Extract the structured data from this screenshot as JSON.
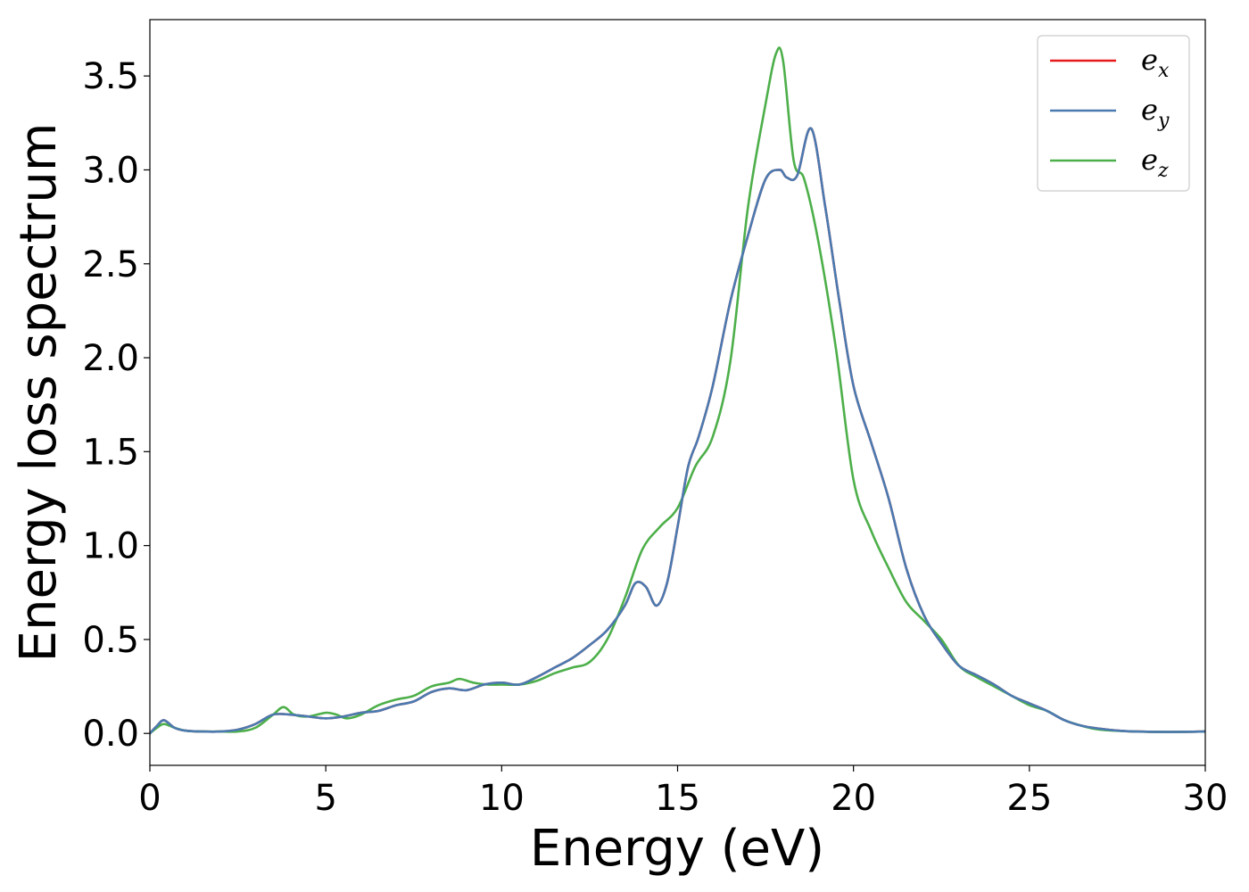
{
  "chart_data": {
    "type": "line",
    "xlabel": "Energy (eV)",
    "ylabel": "Energy loss spectrum",
    "xlim": [
      0,
      30
    ],
    "ylim": [
      -0.17,
      3.8
    ],
    "x_ticks": [
      0,
      5,
      10,
      15,
      20,
      25,
      30
    ],
    "x_tick_labels": [
      "0",
      "5",
      "10",
      "15",
      "20",
      "25",
      "30"
    ],
    "y_ticks": [
      0.0,
      0.5,
      1.0,
      1.5,
      2.0,
      2.5,
      3.0,
      3.5
    ],
    "y_tick_labels": [
      "0.0",
      "0.5",
      "1.0",
      "1.5",
      "2.0",
      "2.5",
      "3.0",
      "3.5"
    ],
    "grid": false,
    "legend_position": "top-right",
    "series": [
      {
        "name": "e",
        "subscript": "x",
        "color": "#e41a1c",
        "x": [
          0,
          0.2,
          0.4,
          0.7,
          1.0,
          1.5,
          2.0,
          2.5,
          3.0,
          3.5,
          4.0,
          4.5,
          5.0,
          5.5,
          6.0,
          6.5,
          7.0,
          7.5,
          8.0,
          8.5,
          9.0,
          9.5,
          10.0,
          10.5,
          11.0,
          11.5,
          12.0,
          12.5,
          13.0,
          13.5,
          13.8,
          14.1,
          14.4,
          14.7,
          15.0,
          15.3,
          15.6,
          16.0,
          16.5,
          17.0,
          17.5,
          17.9,
          18.1,
          18.4,
          18.8,
          19.2,
          19.6,
          20.0,
          20.5,
          21.0,
          21.5,
          22.0,
          22.5,
          23.0,
          23.5,
          24.0,
          24.5,
          25.0,
          25.5,
          26.0,
          26.5,
          27.0,
          27.5,
          28.0,
          29.0,
          30.0
        ],
        "y": [
          0.0,
          0.04,
          0.07,
          0.03,
          0.015,
          0.01,
          0.01,
          0.02,
          0.05,
          0.1,
          0.1,
          0.09,
          0.08,
          0.09,
          0.11,
          0.12,
          0.15,
          0.17,
          0.22,
          0.24,
          0.23,
          0.26,
          0.27,
          0.26,
          0.3,
          0.35,
          0.4,
          0.47,
          0.55,
          0.68,
          0.8,
          0.78,
          0.68,
          0.8,
          1.1,
          1.42,
          1.58,
          1.85,
          2.3,
          2.65,
          2.95,
          3.0,
          2.96,
          2.97,
          3.22,
          2.8,
          2.3,
          1.85,
          1.55,
          1.25,
          0.88,
          0.63,
          0.48,
          0.36,
          0.31,
          0.26,
          0.2,
          0.16,
          0.12,
          0.07,
          0.04,
          0.025,
          0.015,
          0.01,
          0.008,
          0.01
        ]
      },
      {
        "name": "e",
        "subscript": "y",
        "color": "#4a7ab0",
        "x": [
          0,
          0.2,
          0.4,
          0.7,
          1.0,
          1.5,
          2.0,
          2.5,
          3.0,
          3.5,
          4.0,
          4.5,
          5.0,
          5.5,
          6.0,
          6.5,
          7.0,
          7.5,
          8.0,
          8.5,
          9.0,
          9.5,
          10.0,
          10.5,
          11.0,
          11.5,
          12.0,
          12.5,
          13.0,
          13.5,
          13.8,
          14.1,
          14.4,
          14.7,
          15.0,
          15.3,
          15.6,
          16.0,
          16.5,
          17.0,
          17.5,
          17.9,
          18.1,
          18.4,
          18.8,
          19.2,
          19.6,
          20.0,
          20.5,
          21.0,
          21.5,
          22.0,
          22.5,
          23.0,
          23.5,
          24.0,
          24.5,
          25.0,
          25.5,
          26.0,
          26.5,
          27.0,
          27.5,
          28.0,
          29.0,
          30.0
        ],
        "y": [
          0.0,
          0.04,
          0.07,
          0.03,
          0.015,
          0.01,
          0.01,
          0.02,
          0.05,
          0.1,
          0.1,
          0.09,
          0.08,
          0.09,
          0.11,
          0.12,
          0.15,
          0.17,
          0.22,
          0.24,
          0.23,
          0.26,
          0.27,
          0.26,
          0.3,
          0.35,
          0.4,
          0.47,
          0.55,
          0.68,
          0.8,
          0.78,
          0.68,
          0.8,
          1.1,
          1.42,
          1.58,
          1.85,
          2.3,
          2.65,
          2.95,
          3.0,
          2.96,
          2.97,
          3.22,
          2.8,
          2.3,
          1.85,
          1.55,
          1.25,
          0.88,
          0.63,
          0.48,
          0.36,
          0.31,
          0.26,
          0.2,
          0.16,
          0.12,
          0.07,
          0.04,
          0.025,
          0.015,
          0.01,
          0.008,
          0.01
        ]
      },
      {
        "name": "e",
        "subscript": "z",
        "color": "#4daf4a",
        "x": [
          0,
          0.2,
          0.4,
          0.7,
          1.0,
          1.5,
          2.0,
          2.5,
          3.0,
          3.5,
          3.8,
          4.1,
          4.5,
          5.0,
          5.3,
          5.6,
          6.0,
          6.5,
          7.0,
          7.5,
          8.0,
          8.5,
          8.8,
          9.2,
          9.6,
          10.0,
          10.5,
          11.0,
          11.5,
          12.0,
          12.5,
          13.0,
          13.5,
          14.0,
          14.5,
          15.0,
          15.5,
          16.0,
          16.5,
          17.0,
          17.5,
          17.8,
          18.0,
          18.3,
          18.6,
          19.0,
          19.5,
          20.0,
          20.5,
          21.0,
          21.5,
          22.0,
          22.5,
          23.0,
          23.5,
          24.0,
          24.5,
          25.0,
          25.5,
          26.0,
          26.5,
          27.0,
          28.0,
          29.0,
          30.0
        ],
        "y": [
          0.0,
          0.03,
          0.05,
          0.03,
          0.015,
          0.01,
          0.01,
          0.01,
          0.03,
          0.1,
          0.14,
          0.1,
          0.09,
          0.11,
          0.1,
          0.08,
          0.1,
          0.15,
          0.18,
          0.2,
          0.25,
          0.27,
          0.29,
          0.27,
          0.26,
          0.26,
          0.26,
          0.28,
          0.32,
          0.35,
          0.38,
          0.5,
          0.72,
          0.98,
          1.1,
          1.2,
          1.42,
          1.58,
          1.98,
          2.8,
          3.35,
          3.62,
          3.58,
          3.05,
          2.95,
          2.62,
          2.05,
          1.35,
          1.08,
          0.88,
          0.7,
          0.6,
          0.5,
          0.36,
          0.3,
          0.25,
          0.2,
          0.15,
          0.12,
          0.07,
          0.04,
          0.02,
          0.01,
          0.008,
          0.01
        ]
      }
    ]
  }
}
